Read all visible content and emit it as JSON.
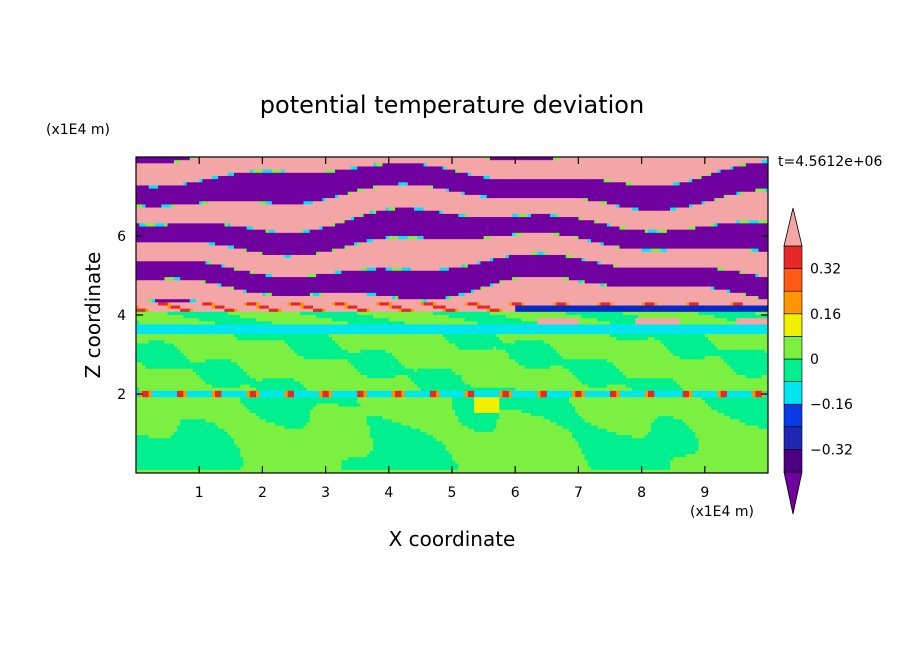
{
  "chart_data": {
    "type": "heatmap",
    "title": "potential temperature deviation",
    "xlabel": "X coordinate",
    "ylabel": "Z coordinate",
    "x_unit": "(x1E4 m)",
    "y_unit": "(x1E4 m)",
    "time_label": "t=4.5612e+06",
    "xlim": [
      0,
      10
    ],
    "ylim": [
      0,
      8
    ],
    "x_ticks": [
      1,
      2,
      3,
      4,
      5,
      6,
      7,
      8,
      9
    ],
    "y_ticks": [
      2,
      4,
      6
    ],
    "colorbar": {
      "labels": [
        "0.32",
        "0.16",
        "0",
        "−0.16",
        "−0.32"
      ],
      "label_values": [
        0.32,
        0.16,
        0,
        -0.16,
        -0.32
      ],
      "levels": [
        -0.4,
        -0.32,
        -0.24,
        -0.16,
        -0.08,
        0,
        0.08,
        0.16,
        0.24,
        0.32,
        0.4
      ],
      "colors": [
        "#4b0082",
        "#1e28b4",
        "#0a3ce6",
        "#00e6f0",
        "#00f090",
        "#7cf040",
        "#f0f000",
        "#ff9600",
        "#ff5a14",
        "#e62828",
        "#ffaaaa",
        "#7000a0"
      ],
      "over_color": "#f4a6a6",
      "under_color": "#7000a0"
    },
    "layers": [
      {
        "z_range": [
          0,
          2.0
        ],
        "description": "green (#00f090 / #7cf040) turbulent cells"
      },
      {
        "z_range": [
          2.0,
          3.6
        ],
        "description": "green bands with cyan line near z=2"
      },
      {
        "z_range": [
          3.6,
          4.3
        ],
        "description": "cyan/blue band with red-orange filaments"
      },
      {
        "z_range": [
          4.3,
          8.0
        ],
        "description": "alternating purple and pink stripes"
      }
    ]
  }
}
